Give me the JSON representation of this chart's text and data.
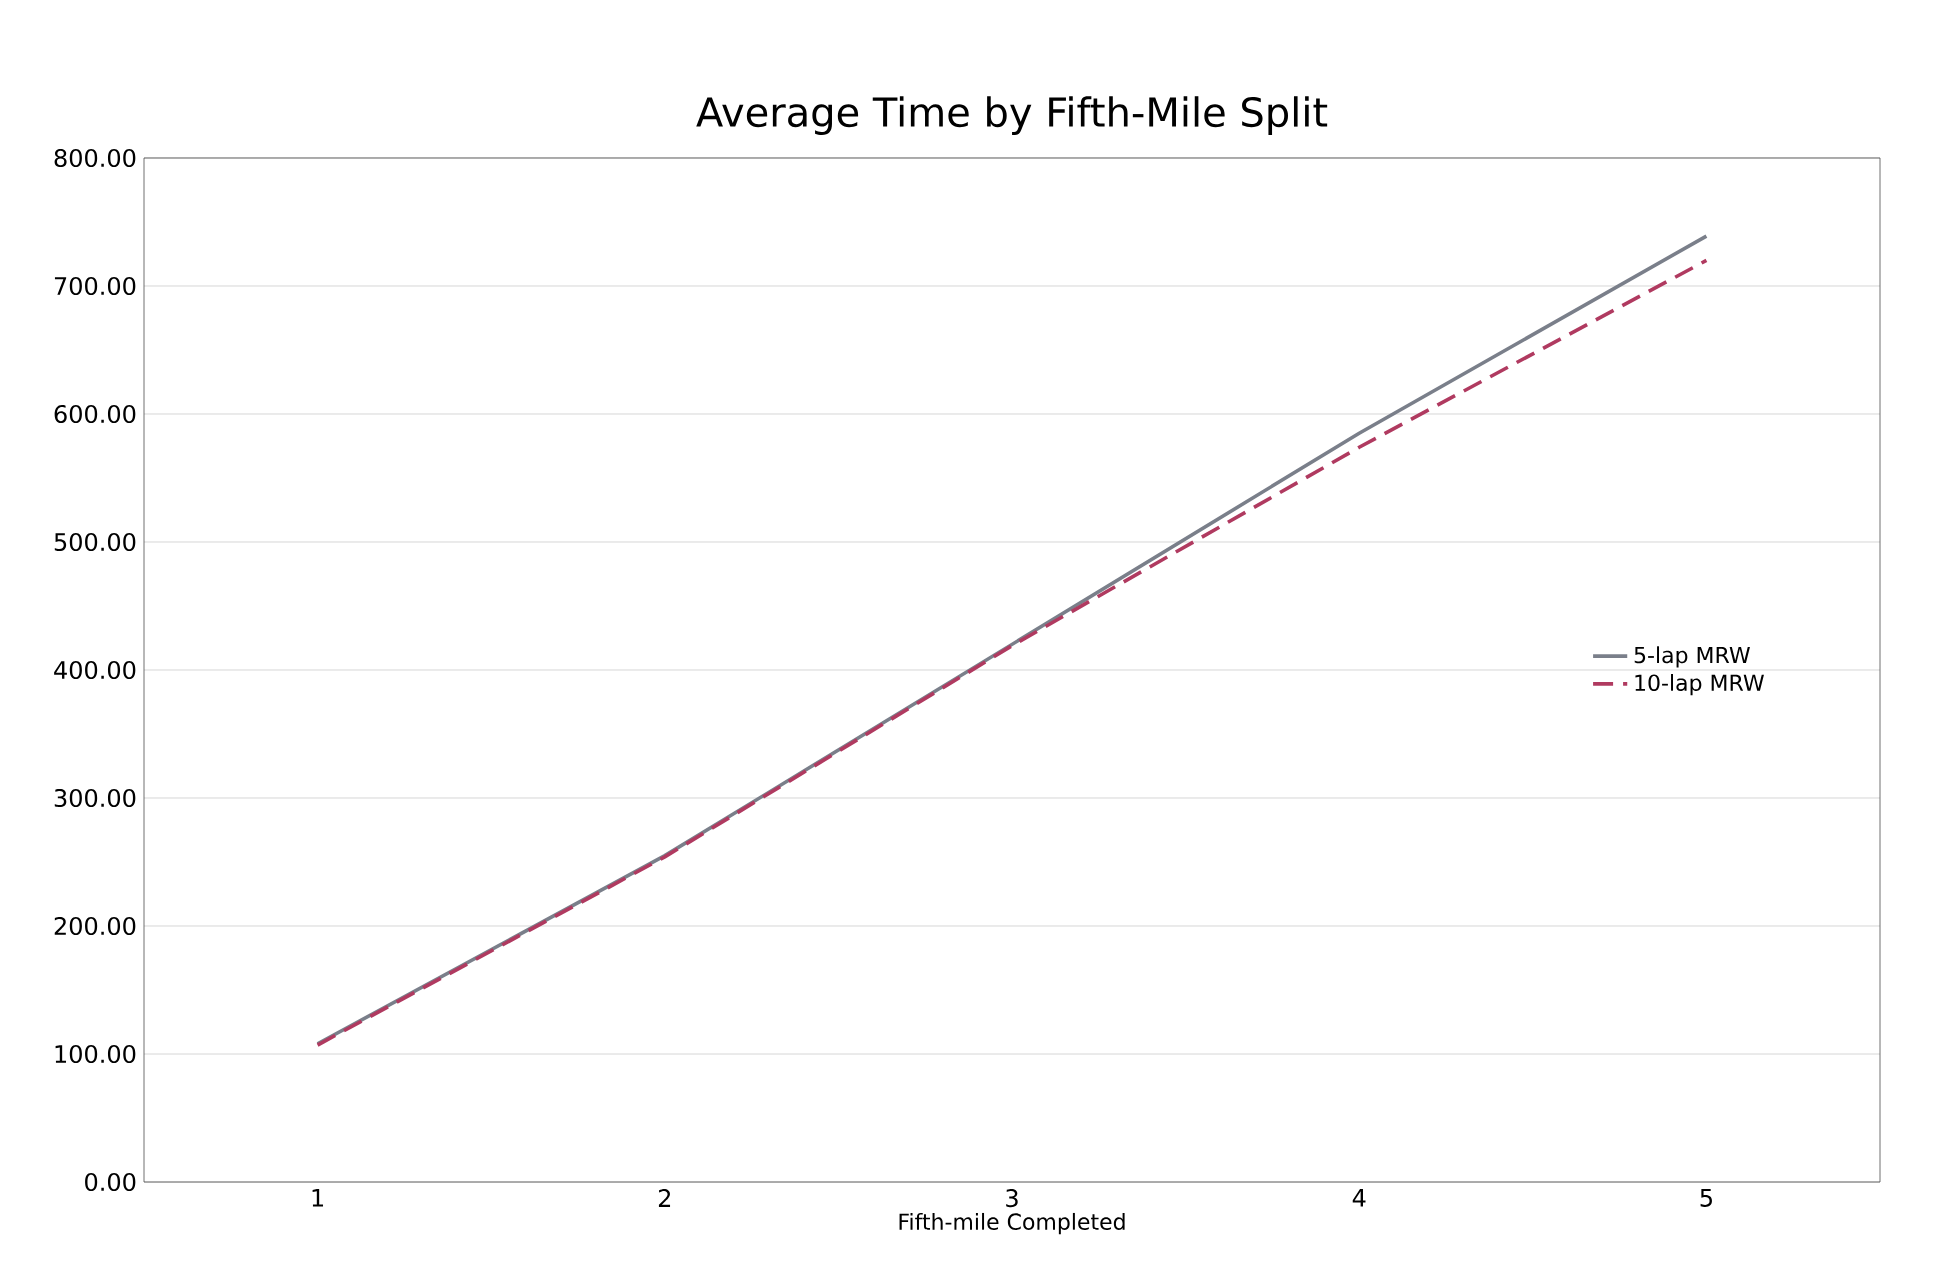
{
  "chart_data": {
    "type": "line",
    "title": "Average Time by Fifth-Mile Split",
    "xlabel": "Fifth-mile Completed",
    "categories": [
      "1",
      "2",
      "3",
      "4",
      "5"
    ],
    "series": [
      {
        "name": "5-lap MRW",
        "color": "#7a7f8a",
        "values": [
          108,
          255,
          420,
          585,
          739
        ],
        "line_style": "solid"
      },
      {
        "name": "10-lap MRW",
        "color": "#b03a60",
        "values": [
          107,
          254,
          419,
          574,
          720
        ],
        "line_style": "dashed"
      }
    ],
    "ylim": [
      0,
      800
    ],
    "yticks": [
      {
        "value": 0,
        "label": "0.00"
      },
      {
        "value": 100,
        "label": "100.00"
      },
      {
        "value": 200,
        "label": "200.00"
      },
      {
        "value": 300,
        "label": "300.00"
      },
      {
        "value": 400,
        "label": "400.00"
      },
      {
        "value": 500,
        "label": "500.00"
      },
      {
        "value": 600,
        "label": "600.00"
      },
      {
        "value": 700,
        "label": "700.00"
      },
      {
        "value": 800,
        "label": "800.00"
      }
    ],
    "grid": "y",
    "legend": "right",
    "marker": "none"
  }
}
